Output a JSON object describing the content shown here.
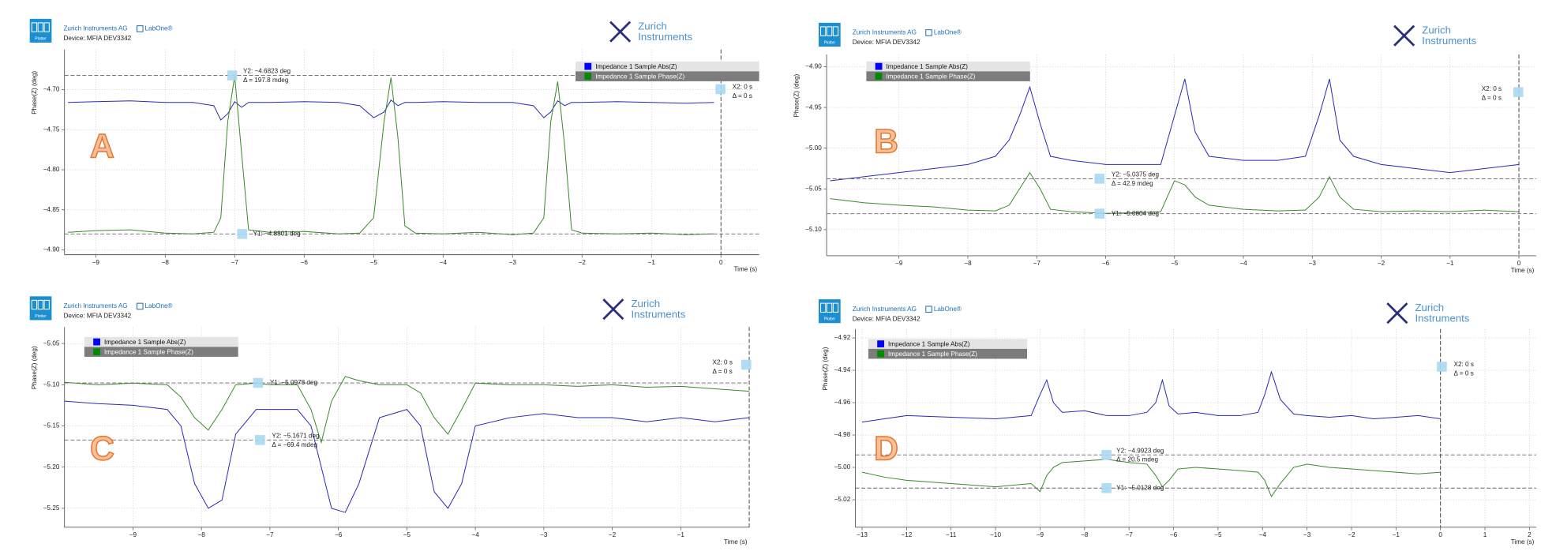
{
  "chart_data": [
    {
      "type": "line",
      "label": "A",
      "icon": "Plotter",
      "company": "Zurich Instruments AG",
      "product": "LabOne®",
      "device": "Device:  MFIA DEV3342",
      "logo": [
        "Zurich",
        "Instruments"
      ],
      "y_label": "Phase(Z) (deg)",
      "x_label": "Time (s)",
      "grid": true,
      "xlim": [
        -9.45,
        0.55
      ],
      "ylim": [
        -4.906,
        -4.65
      ],
      "xticks": [
        {
          "value": -9,
          "label": "−9"
        },
        {
          "value": -8,
          "label": "−8"
        },
        {
          "value": -7,
          "label": "−7"
        },
        {
          "value": -6,
          "label": "−6"
        },
        {
          "value": -5,
          "label": "−5"
        },
        {
          "value": -4,
          "label": "−4"
        },
        {
          "value": -3,
          "label": "−3"
        },
        {
          "value": -2,
          "label": "−2"
        },
        {
          "value": -1,
          "label": "−1"
        },
        {
          "value": 0,
          "label": "0"
        }
      ],
      "yticks": [
        {
          "value": -4.7,
          "label": "−4.70"
        },
        {
          "value": -4.75,
          "label": "−4.75"
        },
        {
          "value": -4.8,
          "label": "−4.80"
        },
        {
          "value": -4.85,
          "label": "−4.85"
        },
        {
          "value": -4.9,
          "label": "−4.90"
        }
      ],
      "x": [
        -9.4,
        -9,
        -8.5,
        -8,
        -7.6,
        -7.3,
        -7.2,
        -7.1,
        -7.0,
        -6.9,
        -6.8,
        -6.5,
        -6,
        -5.5,
        -5.2,
        -5.0,
        -4.85,
        -4.75,
        -4.65,
        -4.55,
        -4.4,
        -4,
        -3.5,
        -3,
        -2.7,
        -2.55,
        -2.45,
        -2.35,
        -2.25,
        -2.15,
        -2.0,
        -1.5,
        -1,
        -0.5,
        -0.1
      ],
      "series": [
        {
          "name": "Impedance 1 Sample Abs(Z)",
          "color": "#2a2ab8",
          "swatch": "#0000ff",
          "values": [
            -4.716,
            -4.715,
            -4.714,
            -4.716,
            -4.716,
            -4.72,
            -4.738,
            -4.73,
            -4.715,
            -4.722,
            -4.716,
            -4.716,
            -4.715,
            -4.716,
            -4.72,
            -4.735,
            -4.728,
            -4.713,
            -4.72,
            -4.716,
            -4.716,
            -4.715,
            -4.716,
            -4.716,
            -4.72,
            -4.735,
            -4.728,
            -4.714,
            -4.72,
            -4.716,
            -4.716,
            -4.715,
            -4.716,
            -4.717,
            -4.716
          ]
        },
        {
          "name": "Impedance 1 Sample Phase(Z)",
          "color": "#3c8a2c",
          "swatch": "#008a00",
          "values": [
            -4.878,
            -4.876,
            -4.875,
            -4.879,
            -4.88,
            -4.878,
            -4.86,
            -4.74,
            -4.683,
            -4.78,
            -4.875,
            -4.878,
            -4.877,
            -4.88,
            -4.879,
            -4.86,
            -4.74,
            -4.685,
            -4.76,
            -4.87,
            -4.879,
            -4.88,
            -4.878,
            -4.881,
            -4.879,
            -4.86,
            -4.74,
            -4.69,
            -4.77,
            -4.875,
            -4.879,
            -4.88,
            -4.879,
            -4.881,
            -4.88
          ]
        }
      ],
      "hcursors": [
        {
          "value": -4.6823,
          "label": "Y2: −4.6823 deg",
          "delta": "Δ = 197.8 mdeg"
        },
        {
          "value": -4.8801,
          "label": "Y1: −4.8801 deg"
        }
      ],
      "vcursor": {
        "value": 0,
        "label": "X2: 0 s",
        "delta": "Δ = 0 s"
      }
    },
    {
      "type": "line",
      "label": "B",
      "icon": "Plotter",
      "company": "Zurich Instruments AG",
      "product": "LabOne®",
      "device": "Device:  MFIA DEV3342",
      "logo": [
        "Zurich",
        "Instruments"
      ],
      "y_label": "Phase(Z) (deg)",
      "x_label": "Time (s)",
      "grid": true,
      "xlim": [
        -10.05,
        0.25
      ],
      "ylim": [
        -5.132,
        -4.885
      ],
      "xticks": [
        {
          "value": -9,
          "label": "−9"
        },
        {
          "value": -8,
          "label": "−8"
        },
        {
          "value": -7,
          "label": "−7"
        },
        {
          "value": -6,
          "label": "−6"
        },
        {
          "value": -5,
          "label": "−5"
        },
        {
          "value": -4,
          "label": "−4"
        },
        {
          "value": -3,
          "label": "−3"
        },
        {
          "value": -2,
          "label": "−2"
        },
        {
          "value": -1,
          "label": "−1"
        },
        {
          "value": 0,
          "label": "0"
        }
      ],
      "yticks": [
        {
          "value": -4.9,
          "label": "−4.90"
        },
        {
          "value": -4.95,
          "label": "−4.95"
        },
        {
          "value": -5.0,
          "label": "−5.00"
        },
        {
          "value": -5.05,
          "label": "−5.05"
        },
        {
          "value": -5.1,
          "label": "−5.10"
        }
      ],
      "x": [
        -10,
        -9.5,
        -9,
        -8.5,
        -8,
        -7.6,
        -7.4,
        -7.25,
        -7.1,
        -6.95,
        -6.8,
        -6.5,
        -6,
        -5.5,
        -5.2,
        -5.0,
        -4.85,
        -4.7,
        -4.5,
        -4,
        -3.5,
        -3.1,
        -2.9,
        -2.75,
        -2.6,
        -2.4,
        -2,
        -1.5,
        -1,
        -0.5,
        0
      ],
      "series": [
        {
          "name": "Impedance 1 Sample Abs(Z)",
          "color": "#2a2ab8",
          "swatch": "#0000ff",
          "values": [
            -5.04,
            -5.035,
            -5.03,
            -5.025,
            -5.02,
            -5.01,
            -4.99,
            -4.96,
            -4.925,
            -4.97,
            -5.01,
            -5.015,
            -5.02,
            -5.02,
            -5.02,
            -4.96,
            -4.915,
            -4.98,
            -5.01,
            -5.015,
            -5.015,
            -5.01,
            -4.96,
            -4.915,
            -4.99,
            -5.01,
            -5.02,
            -5.025,
            -5.03,
            -5.025,
            -5.02
          ]
        },
        {
          "name": "Impedance 1 Sample Phase(Z)",
          "color": "#3c8a2c",
          "swatch": "#008a00",
          "values": [
            -5.062,
            -5.067,
            -5.07,
            -5.072,
            -5.076,
            -5.077,
            -5.07,
            -5.05,
            -5.03,
            -5.05,
            -5.075,
            -5.078,
            -5.08,
            -5.079,
            -5.078,
            -5.04,
            -5.045,
            -5.06,
            -5.07,
            -5.075,
            -5.077,
            -5.076,
            -5.06,
            -5.035,
            -5.06,
            -5.075,
            -5.078,
            -5.077,
            -5.078,
            -5.076,
            -5.078
          ]
        }
      ],
      "hcursors": [
        {
          "value": -5.0375,
          "label": "Y2: −5.0375 deg",
          "delta": "Δ = 42.9 mdeg"
        },
        {
          "value": -5.0804,
          "label": "Y1: −5.0804 deg"
        }
      ],
      "vcursor": {
        "value": 0,
        "label": "X2: 0 s",
        "delta": "Δ = 0 s"
      }
    },
    {
      "type": "line",
      "label": "C",
      "icon": "Plotter",
      "company": "Zurich Instruments AG",
      "product": "LabOne®",
      "device": "Device:  MFIA DEV3342",
      "logo": [
        "Zurich",
        "Instruments"
      ],
      "y_label": "Phase(Z) (deg)",
      "x_label": "Time (s)",
      "grid": true,
      "xlim": [
        -10,
        0
      ],
      "ylim": [
        -5.273,
        -5.03
      ],
      "xticks": [
        {
          "value": -9,
          "label": "−9"
        },
        {
          "value": -8,
          "label": "−8"
        },
        {
          "value": -7,
          "label": "−7"
        },
        {
          "value": -6,
          "label": "−6"
        },
        {
          "value": -5,
          "label": "−5"
        },
        {
          "value": -4,
          "label": "−4"
        },
        {
          "value": -3,
          "label": "−3"
        },
        {
          "value": -2,
          "label": "−2"
        },
        {
          "value": -1,
          "label": "−1"
        }
      ],
      "yticks": [
        {
          "value": -5.05,
          "label": "−5.05"
        },
        {
          "value": -5.1,
          "label": "−5.10"
        },
        {
          "value": -5.15,
          "label": "−5.15"
        },
        {
          "value": -5.2,
          "label": "−5.20"
        },
        {
          "value": -5.25,
          "label": "−5.25"
        }
      ],
      "x": [
        -10,
        -9.5,
        -9,
        -8.5,
        -8.3,
        -8.1,
        -7.9,
        -7.7,
        -7.5,
        -7.2,
        -7,
        -6.6,
        -6.4,
        -6.25,
        -6.1,
        -5.9,
        -5.7,
        -5.4,
        -5,
        -4.8,
        -4.6,
        -4.4,
        -4.2,
        -4,
        -3.5,
        -3,
        -2.5,
        -2,
        -1.5,
        -1,
        -0.5,
        0
      ],
      "series": [
        {
          "name": "Impedance 1 Sample Abs(Z)",
          "color": "#2a2ab8",
          "swatch": "#0000ff",
          "values": [
            -5.12,
            -5.123,
            -5.125,
            -5.13,
            -5.15,
            -5.22,
            -5.25,
            -5.24,
            -5.16,
            -5.13,
            -5.13,
            -5.13,
            -5.15,
            -5.2,
            -5.25,
            -5.255,
            -5.22,
            -5.14,
            -5.13,
            -5.15,
            -5.23,
            -5.25,
            -5.22,
            -5.15,
            -5.14,
            -5.135,
            -5.14,
            -5.14,
            -5.145,
            -5.14,
            -5.145,
            -5.14
          ]
        },
        {
          "name": "Impedance 1 Sample Phase(Z)",
          "color": "#3c8a2c",
          "swatch": "#008a00",
          "values": [
            -5.097,
            -5.1,
            -5.098,
            -5.1,
            -5.115,
            -5.14,
            -5.155,
            -5.13,
            -5.1,
            -5.098,
            -5.1,
            -5.1,
            -5.13,
            -5.17,
            -5.12,
            -5.09,
            -5.095,
            -5.1,
            -5.1,
            -5.11,
            -5.14,
            -5.16,
            -5.13,
            -5.098,
            -5.1,
            -5.1,
            -5.102,
            -5.1,
            -5.103,
            -5.102,
            -5.105,
            -5.108
          ]
        }
      ],
      "hcursors": [
        {
          "value": -5.0978,
          "label": "Y1: −5.0978 deg"
        },
        {
          "value": -5.1671,
          "label": "Y2: −5.1671 deg",
          "delta": "Δ = −69.4 mdeg"
        }
      ],
      "vcursor": {
        "value": 0,
        "label": "X2: 0 s",
        "delta": "Δ = 0 s"
      }
    },
    {
      "type": "line",
      "label": "D",
      "icon": "Plotter",
      "company": "Zurich Instruments AG",
      "product": "LabOne®",
      "device": "Device:  MFIA DEV3342",
      "logo": [
        "Zurich",
        "Instruments"
      ],
      "y_label": "Phase(Z) (deg)",
      "x_label": "Time (s)",
      "grid": true,
      "xlim": [
        -13.15,
        2.15
      ],
      "ylim": [
        -5.037,
        -4.9145
      ],
      "xticks": [
        {
          "value": -13,
          "label": "−13"
        },
        {
          "value": -12,
          "label": "−12"
        },
        {
          "value": -11,
          "label": "−11"
        },
        {
          "value": -10,
          "label": "−10"
        },
        {
          "value": -9,
          "label": "−9"
        },
        {
          "value": -8,
          "label": "−8"
        },
        {
          "value": -7,
          "label": "−7"
        },
        {
          "value": -6,
          "label": "−6"
        },
        {
          "value": -5,
          "label": "−5"
        },
        {
          "value": -4,
          "label": "−4"
        },
        {
          "value": -3,
          "label": "−3"
        },
        {
          "value": -2,
          "label": "−2"
        },
        {
          "value": -1,
          "label": "−1"
        },
        {
          "value": 0,
          "label": "0"
        },
        {
          "value": 1,
          "label": "1"
        },
        {
          "value": 2,
          "label": "2"
        }
      ],
      "yticks": [
        {
          "value": -4.92,
          "label": "−4.92"
        },
        {
          "value": -4.94,
          "label": "−4.94"
        },
        {
          "value": -4.96,
          "label": "−4.96"
        },
        {
          "value": -4.98,
          "label": "−4.98"
        },
        {
          "value": -5.0,
          "label": "−5.00"
        },
        {
          "value": -5.02,
          "label": "−5.02"
        }
      ],
      "x": [
        -13,
        -12.5,
        -12,
        -11,
        -10,
        -9.2,
        -9.0,
        -8.85,
        -8.7,
        -8.5,
        -8,
        -7.5,
        -7,
        -6.6,
        -6.4,
        -6.25,
        -6.1,
        -5.9,
        -5.5,
        -5,
        -4.5,
        -4.1,
        -3.95,
        -3.8,
        -3.6,
        -3.3,
        -3,
        -2.5,
        -2,
        -1.5,
        -1,
        -0.5,
        0
      ],
      "series": [
        {
          "name": "Impedance 1 Sample Abs(Z)",
          "color": "#2a2ab8",
          "swatch": "#0000ff",
          "values": [
            -4.972,
            -4.97,
            -4.968,
            -4.969,
            -4.97,
            -4.968,
            -4.955,
            -4.946,
            -4.96,
            -4.966,
            -4.965,
            -4.968,
            -4.968,
            -4.966,
            -4.96,
            -4.946,
            -4.962,
            -4.967,
            -4.966,
            -4.968,
            -4.968,
            -4.966,
            -4.955,
            -4.941,
            -4.958,
            -4.967,
            -4.968,
            -4.969,
            -4.968,
            -4.97,
            -4.969,
            -4.968,
            -4.97
          ]
        },
        {
          "name": "Impedance 1 Sample Phase(Z)",
          "color": "#3c8a2c",
          "swatch": "#008a00",
          "values": [
            -5.003,
            -5.006,
            -5.008,
            -5.01,
            -5.012,
            -5.01,
            -5.015,
            -5.005,
            -5.0,
            -4.997,
            -4.996,
            -4.995,
            -4.997,
            -4.998,
            -5.005,
            -5.012,
            -5.008,
            -5.001,
            -5.0,
            -5.001,
            -5.002,
            -5.003,
            -5.008,
            -5.018,
            -5.01,
            -5.0,
            -4.998,
            -5.0,
            -5.001,
            -5.002,
            -5.003,
            -5.004,
            -5.003
          ]
        }
      ],
      "hcursors": [
        {
          "value": -4.9923,
          "label": "Y2: −4.9923 deg",
          "delta": "Δ = 20.5 mdeg"
        },
        {
          "value": -5.0128,
          "label": "Y1: −5.0128 deg"
        }
      ],
      "vcursor": {
        "value": 0,
        "label": "X2: 0 s",
        "delta": "Δ = 0 s"
      }
    }
  ]
}
